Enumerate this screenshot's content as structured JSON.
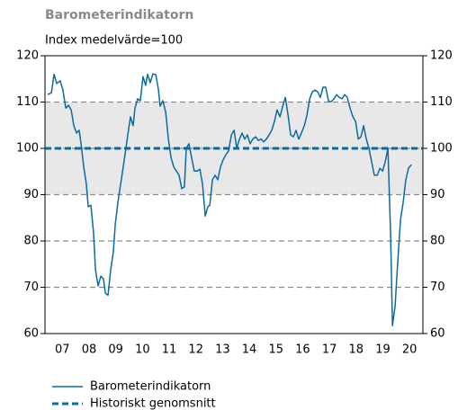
{
  "chart_data": {
    "type": "line",
    "title": "Barometerindikatorn",
    "subtitle": "Index medelvärde=100",
    "xlim": [
      2006.85,
      2021.0
    ],
    "xticks": [
      {
        "value": 2007.5,
        "label": "07"
      },
      {
        "value": 2008.5,
        "label": "08"
      },
      {
        "value": 2009.5,
        "label": "09"
      },
      {
        "value": 2010.5,
        "label": "10"
      },
      {
        "value": 2011.5,
        "label": "11"
      },
      {
        "value": 2012.5,
        "label": "12"
      },
      {
        "value": 2013.5,
        "label": "13"
      },
      {
        "value": 2014.5,
        "label": "14"
      },
      {
        "value": 2015.5,
        "label": "15"
      },
      {
        "value": 2016.5,
        "label": "16"
      },
      {
        "value": 2017.5,
        "label": "17"
      },
      {
        "value": 2018.5,
        "label": "18"
      },
      {
        "value": 2019.5,
        "label": "19"
      },
      {
        "value": 2020.5,
        "label": "20"
      }
    ],
    "ylim": [
      60,
      120
    ],
    "yticks": [
      60,
      70,
      80,
      90,
      100,
      110,
      120
    ],
    "y2lim": [
      60,
      120
    ],
    "y2ticks": [
      60,
      70,
      80,
      90,
      100,
      110,
      120
    ],
    "grid": true,
    "band": [
      90,
      110
    ],
    "band_color": "#e8e8e8",
    "reference": {
      "name": "Historiskt genomsnitt",
      "value": 100,
      "color": "#0b6a9e"
    },
    "legend": "bottom-left",
    "x": [
      2006.95,
      2007.09,
      2007.19,
      2007.29,
      2007.42,
      2007.52,
      2007.63,
      2007.73,
      2007.83,
      2007.93,
      2008.03,
      2008.13,
      2008.2,
      2008.3,
      2008.4,
      2008.47,
      2008.57,
      2008.67,
      2008.74,
      2008.84,
      2008.94,
      2009.04,
      2009.11,
      2009.21,
      2009.31,
      2009.41,
      2009.48,
      2009.58,
      2009.68,
      2009.78,
      2009.88,
      2009.95,
      2010.05,
      2010.15,
      2010.22,
      2010.32,
      2010.42,
      2010.52,
      2010.62,
      2010.69,
      2010.79,
      2010.89,
      2011.0,
      2011.1,
      2011.16,
      2011.26,
      2011.37,
      2011.47,
      2011.57,
      2011.67,
      2011.77,
      2011.87,
      2011.97,
      2012.07,
      2012.14,
      2012.24,
      2012.34,
      2012.44,
      2012.55,
      2012.65,
      2012.75,
      2012.85,
      2012.95,
      2013.02,
      2013.12,
      2013.22,
      2013.32,
      2013.42,
      2013.52,
      2013.62,
      2013.72,
      2013.83,
      2013.93,
      2014.03,
      2014.13,
      2014.23,
      2014.33,
      2014.43,
      2014.53,
      2014.63,
      2014.74,
      2014.84,
      2014.94,
      2015.04,
      2015.14,
      2015.24,
      2015.34,
      2015.44,
      2015.54,
      2015.65,
      2015.75,
      2015.85,
      2015.95,
      2016.05,
      2016.15,
      2016.25,
      2016.35,
      2016.45,
      2016.56,
      2016.66,
      2016.76,
      2016.86,
      2016.96,
      2017.06,
      2017.16,
      2017.26,
      2017.36,
      2017.47,
      2017.57,
      2017.67,
      2017.77,
      2017.87,
      2017.97,
      2018.07,
      2018.17,
      2018.27,
      2018.38,
      2018.48,
      2018.58,
      2018.68,
      2018.78,
      2018.88,
      2018.98,
      2019.08,
      2019.18,
      2019.29,
      2019.39,
      2019.49,
      2019.59,
      2019.69,
      2019.79,
      2019.86,
      2019.96,
      2020.06,
      2020.16,
      2020.26,
      2020.36,
      2020.46,
      2020.57
    ],
    "series": [
      {
        "name": "Barometerindikatorn",
        "color": "#0b6a9e",
        "values": [
          111.6,
          112,
          116,
          114,
          114.6,
          112.6,
          108.7,
          109.3,
          108.3,
          104.9,
          103.3,
          103.9,
          101,
          96,
          92.2,
          87.4,
          87.7,
          81.6,
          73.8,
          70.3,
          72.4,
          71.8,
          68.7,
          68.3,
          73.8,
          77.7,
          83.5,
          88.3,
          92.2,
          96,
          100,
          102.9,
          106.8,
          104.9,
          108.7,
          110.7,
          110.3,
          115.5,
          113.6,
          116,
          114.2,
          116.1,
          115.9,
          112.6,
          109.1,
          110.3,
          107.8,
          102,
          98,
          96,
          95.1,
          94.2,
          91.3,
          91.7,
          100,
          101,
          98,
          95.1,
          95.1,
          95.5,
          92.2,
          85.4,
          87.4,
          87.7,
          93.2,
          94.2,
          93.2,
          96,
          97.5,
          98.6,
          99.4,
          102.9,
          103.9,
          100,
          102,
          103.3,
          102,
          102.9,
          101,
          102,
          102.5,
          101.7,
          102,
          101.4,
          102,
          102.9,
          103.9,
          105.8,
          108.3,
          106.8,
          109.1,
          111,
          107.2,
          102.9,
          102.5,
          103.9,
          102,
          103.3,
          104.9,
          107.2,
          110.7,
          112.2,
          112.6,
          112.2,
          111,
          113.2,
          113.2,
          110.1,
          110.1,
          110.7,
          111.6,
          111,
          110.7,
          111.6,
          111,
          108.7,
          106.8,
          105.8,
          102,
          102.5,
          104.9,
          102,
          100,
          97.1,
          94.2,
          94.2,
          95.7,
          95.1,
          97.1,
          100,
          81.6,
          61.7,
          66,
          75.7,
          84.5,
          88.3,
          93.2,
          95.7,
          96.5
        ]
      }
    ]
  }
}
